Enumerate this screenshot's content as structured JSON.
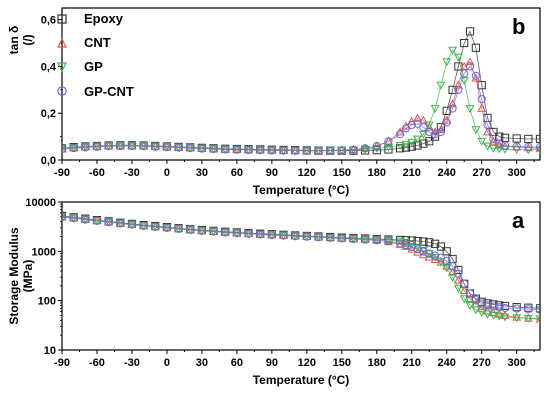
{
  "chart_data": [
    {
      "type": "scatter",
      "panel_letter": "b",
      "xlabel": "Temperature (°C)",
      "ylabel": "tan δ",
      "ylabel_unit": "(/)",
      "xlim": [
        -90,
        320
      ],
      "ylim": [
        0,
        0.65
      ],
      "xticks": [
        -90,
        -60,
        -30,
        0,
        30,
        60,
        90,
        120,
        150,
        180,
        210,
        240,
        270,
        300
      ],
      "xtick_labels": [
        "-90",
        "-60",
        "-30",
        "0",
        "30",
        "60",
        "90",
        "120",
        "150",
        "180",
        "210",
        "240",
        "270",
        "300"
      ],
      "yticks": [
        0,
        0.2,
        0.4,
        0.6
      ],
      "ytick_labels": [
        "0,0",
        "0,2",
        "0,4",
        "0,6"
      ],
      "legend_position": "top-left",
      "x": [
        -90,
        -80,
        -70,
        -60,
        -50,
        -40,
        -30,
        -20,
        -10,
        0,
        10,
        20,
        30,
        40,
        50,
        60,
        70,
        80,
        90,
        100,
        110,
        120,
        130,
        140,
        150,
        160,
        170,
        180,
        190,
        200,
        205,
        210,
        215,
        220,
        225,
        230,
        235,
        240,
        245,
        250,
        255,
        260,
        265,
        270,
        275,
        280,
        285,
        290,
        300,
        310,
        320
      ],
      "series": [
        {
          "name": "Epoxy",
          "marker": "square",
          "color": "#333333",
          "values": [
            0.05,
            0.055,
            0.058,
            0.06,
            0.062,
            0.063,
            0.063,
            0.062,
            0.06,
            0.058,
            0.056,
            0.054,
            0.052,
            0.05,
            0.048,
            0.047,
            0.046,
            0.045,
            0.044,
            0.043,
            0.042,
            0.041,
            0.04,
            0.04,
            0.04,
            0.04,
            0.041,
            0.042,
            0.045,
            0.05,
            0.053,
            0.057,
            0.062,
            0.07,
            0.08,
            0.1,
            0.14,
            0.21,
            0.3,
            0.4,
            0.5,
            0.55,
            0.48,
            0.32,
            0.18,
            0.12,
            0.1,
            0.095,
            0.092,
            0.09,
            0.09
          ]
        },
        {
          "name": "CNT",
          "marker": "triangle-up",
          "color": "#e05a4a",
          "values": [
            0.048,
            0.052,
            0.055,
            0.058,
            0.06,
            0.061,
            0.061,
            0.06,
            0.058,
            0.056,
            0.054,
            0.052,
            0.05,
            0.048,
            0.046,
            0.045,
            0.044,
            0.043,
            0.042,
            0.041,
            0.04,
            0.039,
            0.039,
            0.04,
            0.042,
            0.045,
            0.05,
            0.06,
            0.08,
            0.12,
            0.145,
            0.165,
            0.178,
            0.17,
            0.14,
            0.12,
            0.13,
            0.17,
            0.24,
            0.32,
            0.4,
            0.42,
            0.35,
            0.22,
            0.12,
            0.08,
            0.065,
            0.058,
            0.055,
            0.052,
            0.05
          ]
        },
        {
          "name": "GP",
          "marker": "triangle-down",
          "color": "#3cb54a",
          "values": [
            0.05,
            0.054,
            0.057,
            0.06,
            0.062,
            0.063,
            0.063,
            0.062,
            0.06,
            0.058,
            0.055,
            0.053,
            0.05,
            0.048,
            0.046,
            0.045,
            0.044,
            0.043,
            0.042,
            0.041,
            0.04,
            0.04,
            0.04,
            0.041,
            0.042,
            0.044,
            0.046,
            0.05,
            0.055,
            0.062,
            0.068,
            0.076,
            0.09,
            0.11,
            0.15,
            0.22,
            0.32,
            0.42,
            0.47,
            0.44,
            0.34,
            0.22,
            0.13,
            0.08,
            0.06,
            0.05,
            0.048,
            0.046,
            0.045,
            0.044,
            0.044
          ]
        },
        {
          "name": "GP-CNT",
          "marker": "circle",
          "color": "#6a6ad8",
          "values": [
            0.047,
            0.051,
            0.054,
            0.057,
            0.059,
            0.06,
            0.06,
            0.059,
            0.057,
            0.055,
            0.053,
            0.051,
            0.049,
            0.047,
            0.045,
            0.044,
            0.043,
            0.042,
            0.041,
            0.04,
            0.04,
            0.039,
            0.039,
            0.04,
            0.041,
            0.044,
            0.05,
            0.06,
            0.08,
            0.11,
            0.135,
            0.15,
            0.155,
            0.14,
            0.12,
            0.11,
            0.12,
            0.16,
            0.22,
            0.3,
            0.37,
            0.4,
            0.36,
            0.26,
            0.15,
            0.09,
            0.07,
            0.062,
            0.058,
            0.056,
            0.055
          ]
        }
      ]
    },
    {
      "type": "scatter",
      "panel_letter": "a",
      "xlabel": "Temperature (°C)",
      "ylabel": "Storage Modulus",
      "ylabel_unit": "(MPa)",
      "xlim": [
        -90,
        320
      ],
      "ylim": [
        10,
        10000
      ],
      "yscale": "log",
      "xticks": [
        -90,
        -60,
        -30,
        0,
        30,
        60,
        90,
        120,
        150,
        180,
        210,
        240,
        270,
        300
      ],
      "xtick_labels": [
        "-90",
        "-60",
        "-30",
        "0",
        "30",
        "60",
        "90",
        "120",
        "150",
        "180",
        "210",
        "240",
        "270",
        "300"
      ],
      "yticks": [
        10,
        100,
        1000,
        10000
      ],
      "ytick_labels": [
        "10",
        "100",
        "1000",
        "10000"
      ],
      "x": [
        -90,
        -80,
        -70,
        -60,
        -50,
        -40,
        -30,
        -20,
        -10,
        0,
        10,
        20,
        30,
        40,
        50,
        60,
        70,
        80,
        90,
        100,
        110,
        120,
        130,
        140,
        150,
        160,
        170,
        180,
        190,
        200,
        205,
        210,
        215,
        220,
        225,
        230,
        235,
        240,
        245,
        250,
        255,
        260,
        265,
        270,
        275,
        280,
        285,
        290,
        300,
        310,
        320
      ],
      "series": [
        {
          "name": "Epoxy",
          "marker": "square",
          "color": "#333333",
          "values": [
            5200,
            4900,
            4600,
            4300,
            4050,
            3800,
            3600,
            3400,
            3250,
            3100,
            2950,
            2800,
            2700,
            2600,
            2500,
            2420,
            2350,
            2280,
            2220,
            2160,
            2100,
            2050,
            2000,
            1950,
            1900,
            1860,
            1820,
            1780,
            1740,
            1700,
            1680,
            1660,
            1620,
            1580,
            1520,
            1420,
            1250,
            1000,
            700,
            420,
            220,
            140,
            110,
            95,
            88,
            84,
            80,
            78,
            74,
            72,
            70
          ]
        },
        {
          "name": "CNT",
          "marker": "triangle-up",
          "color": "#e05a4a",
          "values": [
            5000,
            4750,
            4450,
            4200,
            3950,
            3700,
            3500,
            3320,
            3150,
            3000,
            2870,
            2740,
            2620,
            2520,
            2430,
            2350,
            2280,
            2210,
            2150,
            2090,
            2040,
            1990,
            1940,
            1890,
            1840,
            1790,
            1740,
            1680,
            1560,
            1380,
            1250,
            1100,
            960,
            850,
            760,
            680,
            600,
            500,
            380,
            260,
            160,
            110,
            85,
            70,
            62,
            57,
            53,
            50,
            46,
            44,
            42
          ]
        },
        {
          "name": "GP",
          "marker": "triangle-down",
          "color": "#3cb54a",
          "values": [
            5100,
            4800,
            4500,
            4250,
            4000,
            3750,
            3550,
            3360,
            3200,
            3050,
            2900,
            2770,
            2650,
            2550,
            2460,
            2380,
            2310,
            2240,
            2180,
            2120,
            2070,
            2020,
            1970,
            1920,
            1870,
            1830,
            1790,
            1750,
            1710,
            1620,
            1520,
            1380,
            1220,
            1050,
            900,
            760,
            620,
            460,
            300,
            180,
            110,
            80,
            66,
            58,
            54,
            51,
            49,
            47,
            45,
            44,
            43
          ]
        },
        {
          "name": "GP-CNT",
          "marker": "circle",
          "color": "#6a6ad8",
          "values": [
            4950,
            4700,
            4400,
            4150,
            3900,
            3680,
            3480,
            3300,
            3140,
            2990,
            2860,
            2730,
            2610,
            2510,
            2420,
            2340,
            2270,
            2200,
            2140,
            2080,
            2030,
            1980,
            1930,
            1880,
            1830,
            1780,
            1730,
            1680,
            1600,
            1450,
            1340,
            1220,
            1100,
            990,
            900,
            820,
            740,
            640,
            500,
            350,
            220,
            140,
            105,
            88,
            80,
            76,
            73,
            71,
            69,
            67,
            65
          ]
        }
      ]
    }
  ]
}
